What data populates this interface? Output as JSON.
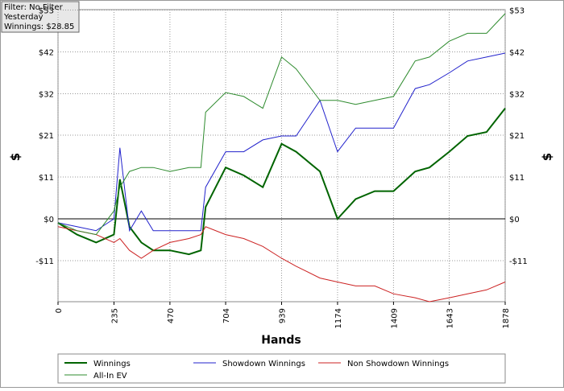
{
  "chart_data": {
    "type": "line",
    "filter_box": [
      "Filter: No Filter",
      "Yesterday",
      "Winnings: $28.85"
    ],
    "xlabel": "Hands",
    "ylabel": "$",
    "x": [
      0,
      80,
      160,
      235,
      260,
      300,
      350,
      400,
      470,
      550,
      600,
      620,
      704,
      780,
      860,
      939,
      1000,
      1100,
      1174,
      1250,
      1330,
      1409,
      1500,
      1560,
      1643,
      1720,
      1800,
      1878
    ],
    "xlim": [
      0,
      1878
    ],
    "xticks": [
      0,
      235,
      470,
      704,
      939,
      1174,
      1409,
      1643,
      1878
    ],
    "ylim": [
      -21,
      53
    ],
    "yticks": [
      {
        "value": 52.9,
        "label": "$53"
      },
      {
        "value": 42.3,
        "label": "$42"
      },
      {
        "value": 31.7,
        "label": "$32"
      },
      {
        "value": 21.2,
        "label": "$21"
      },
      {
        "value": 10.6,
        "label": "$11"
      },
      {
        "value": 0,
        "label": "$0"
      },
      {
        "value": -10.6,
        "label": "-$11"
      }
    ],
    "grid": true,
    "series": [
      {
        "name": "Winnings",
        "color": "#006400",
        "width": 2,
        "values": [
          -1,
          -4,
          -6,
          -4,
          10,
          -2,
          -6,
          -8,
          -8,
          -9,
          -8,
          3,
          13,
          11,
          8,
          19,
          17,
          12,
          0,
          5,
          7,
          7,
          12,
          13,
          17,
          21,
          22,
          28
        ]
      },
      {
        "name": "Showdown Winnings",
        "color": "#2222cc",
        "width": 1,
        "values": [
          -1,
          -2,
          -3,
          0,
          18,
          -3,
          2,
          -3,
          -3,
          -3,
          -3,
          8,
          17,
          17,
          20,
          21,
          21,
          30,
          17,
          23,
          23,
          23,
          33,
          34,
          37,
          40,
          41,
          42
        ]
      },
      {
        "name": "Non Showdown Winnings",
        "color": "#cc2222",
        "width": 1,
        "values": [
          -2,
          -3,
          -4,
          -6,
          -5,
          -8,
          -10,
          -8,
          -6,
          -5,
          -4,
          -2,
          -4,
          -5,
          -7,
          -10,
          -12,
          -15,
          -16,
          -17,
          -17,
          -19,
          -20,
          -21,
          -20,
          -19,
          -18,
          -16
        ]
      },
      {
        "name": "All-In EV",
        "color": "#2e8b2e",
        "width": 1,
        "values": [
          -1,
          -3,
          -4,
          2,
          8,
          12,
          13,
          13,
          12,
          13,
          13,
          27,
          32,
          31,
          28,
          41,
          38,
          30,
          30,
          29,
          30,
          31,
          40,
          41,
          45,
          47,
          47,
          52
        ]
      }
    ]
  }
}
